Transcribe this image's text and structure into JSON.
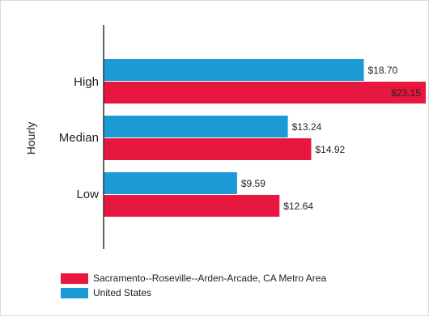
{
  "chart_data": {
    "type": "bar",
    "orientation": "horizontal",
    "ylabel": "Hourly",
    "categories": [
      "High",
      "Median",
      "Low"
    ],
    "series": [
      {
        "name": "United States",
        "values": [
          18.7,
          13.24,
          9.59
        ],
        "labels": [
          "$18.70",
          "$13.24",
          "$9.59"
        ],
        "color": "#1b9ad6"
      },
      {
        "name": "Sacramento--Roseville--Arden-Arcade, CA Metro Area",
        "values": [
          23.15,
          14.92,
          12.64
        ],
        "labels": [
          "$23.15",
          "$14.92",
          "$12.64"
        ],
        "color": "#e8173f"
      }
    ],
    "legend_order": [
      1,
      0
    ],
    "legend_position": "bottom-left",
    "xlim": [
      0,
      23.15
    ],
    "grid": false
  }
}
